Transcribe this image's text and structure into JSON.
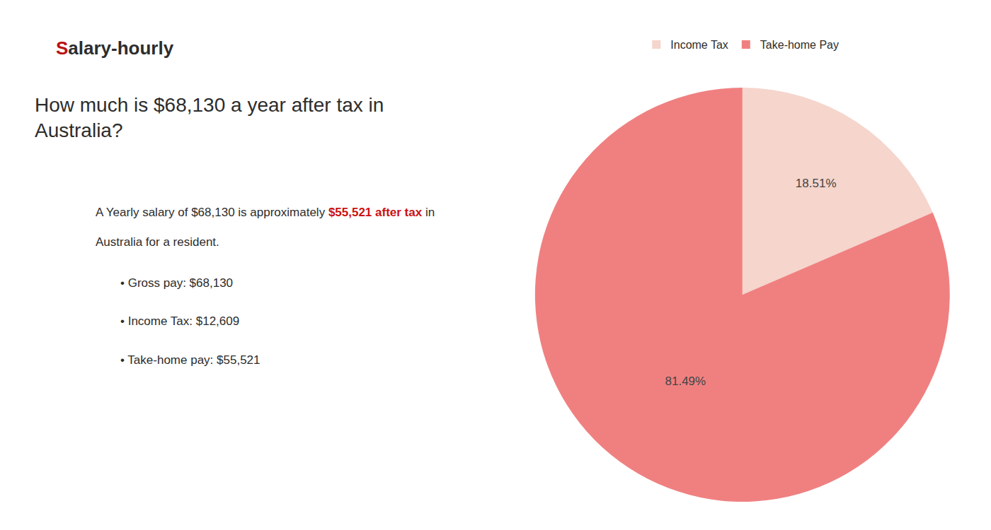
{
  "chart_data": {
    "type": "pie",
    "title": "How much is $68,130 a year after tax in\nAustralia?",
    "categories": [
      "Income Tax",
      "Take-home Pay"
    ],
    "values": [
      18.51,
      81.49
    ],
    "value_labels": [
      "18.51%",
      "81.49%"
    ],
    "data_labels": true,
    "colors": [
      "#f5d5cc",
      "#f08080"
    ],
    "legend": "top",
    "annotations": [
      [
        {
          "text": "S",
          "color": "#bb1111"
        },
        {
          "text": "alary-hourly"
        }
      ],
      [
        {
          "text": "A Yearly salary of $68,130 is approximately "
        },
        {
          "text": "$55,521 after tax",
          "color": "#cc1111"
        },
        {
          "text": " in"
        }
      ],
      [
        {
          "text": "Australia for a resident."
        }
      ],
      [
        {
          "text": "• Gross pay: $68,130"
        }
      ],
      [
        {
          "text": "• Income Tax: $12,609"
        }
      ],
      [
        {
          "text": "• Take-home pay: $55,521"
        }
      ]
    ]
  }
}
